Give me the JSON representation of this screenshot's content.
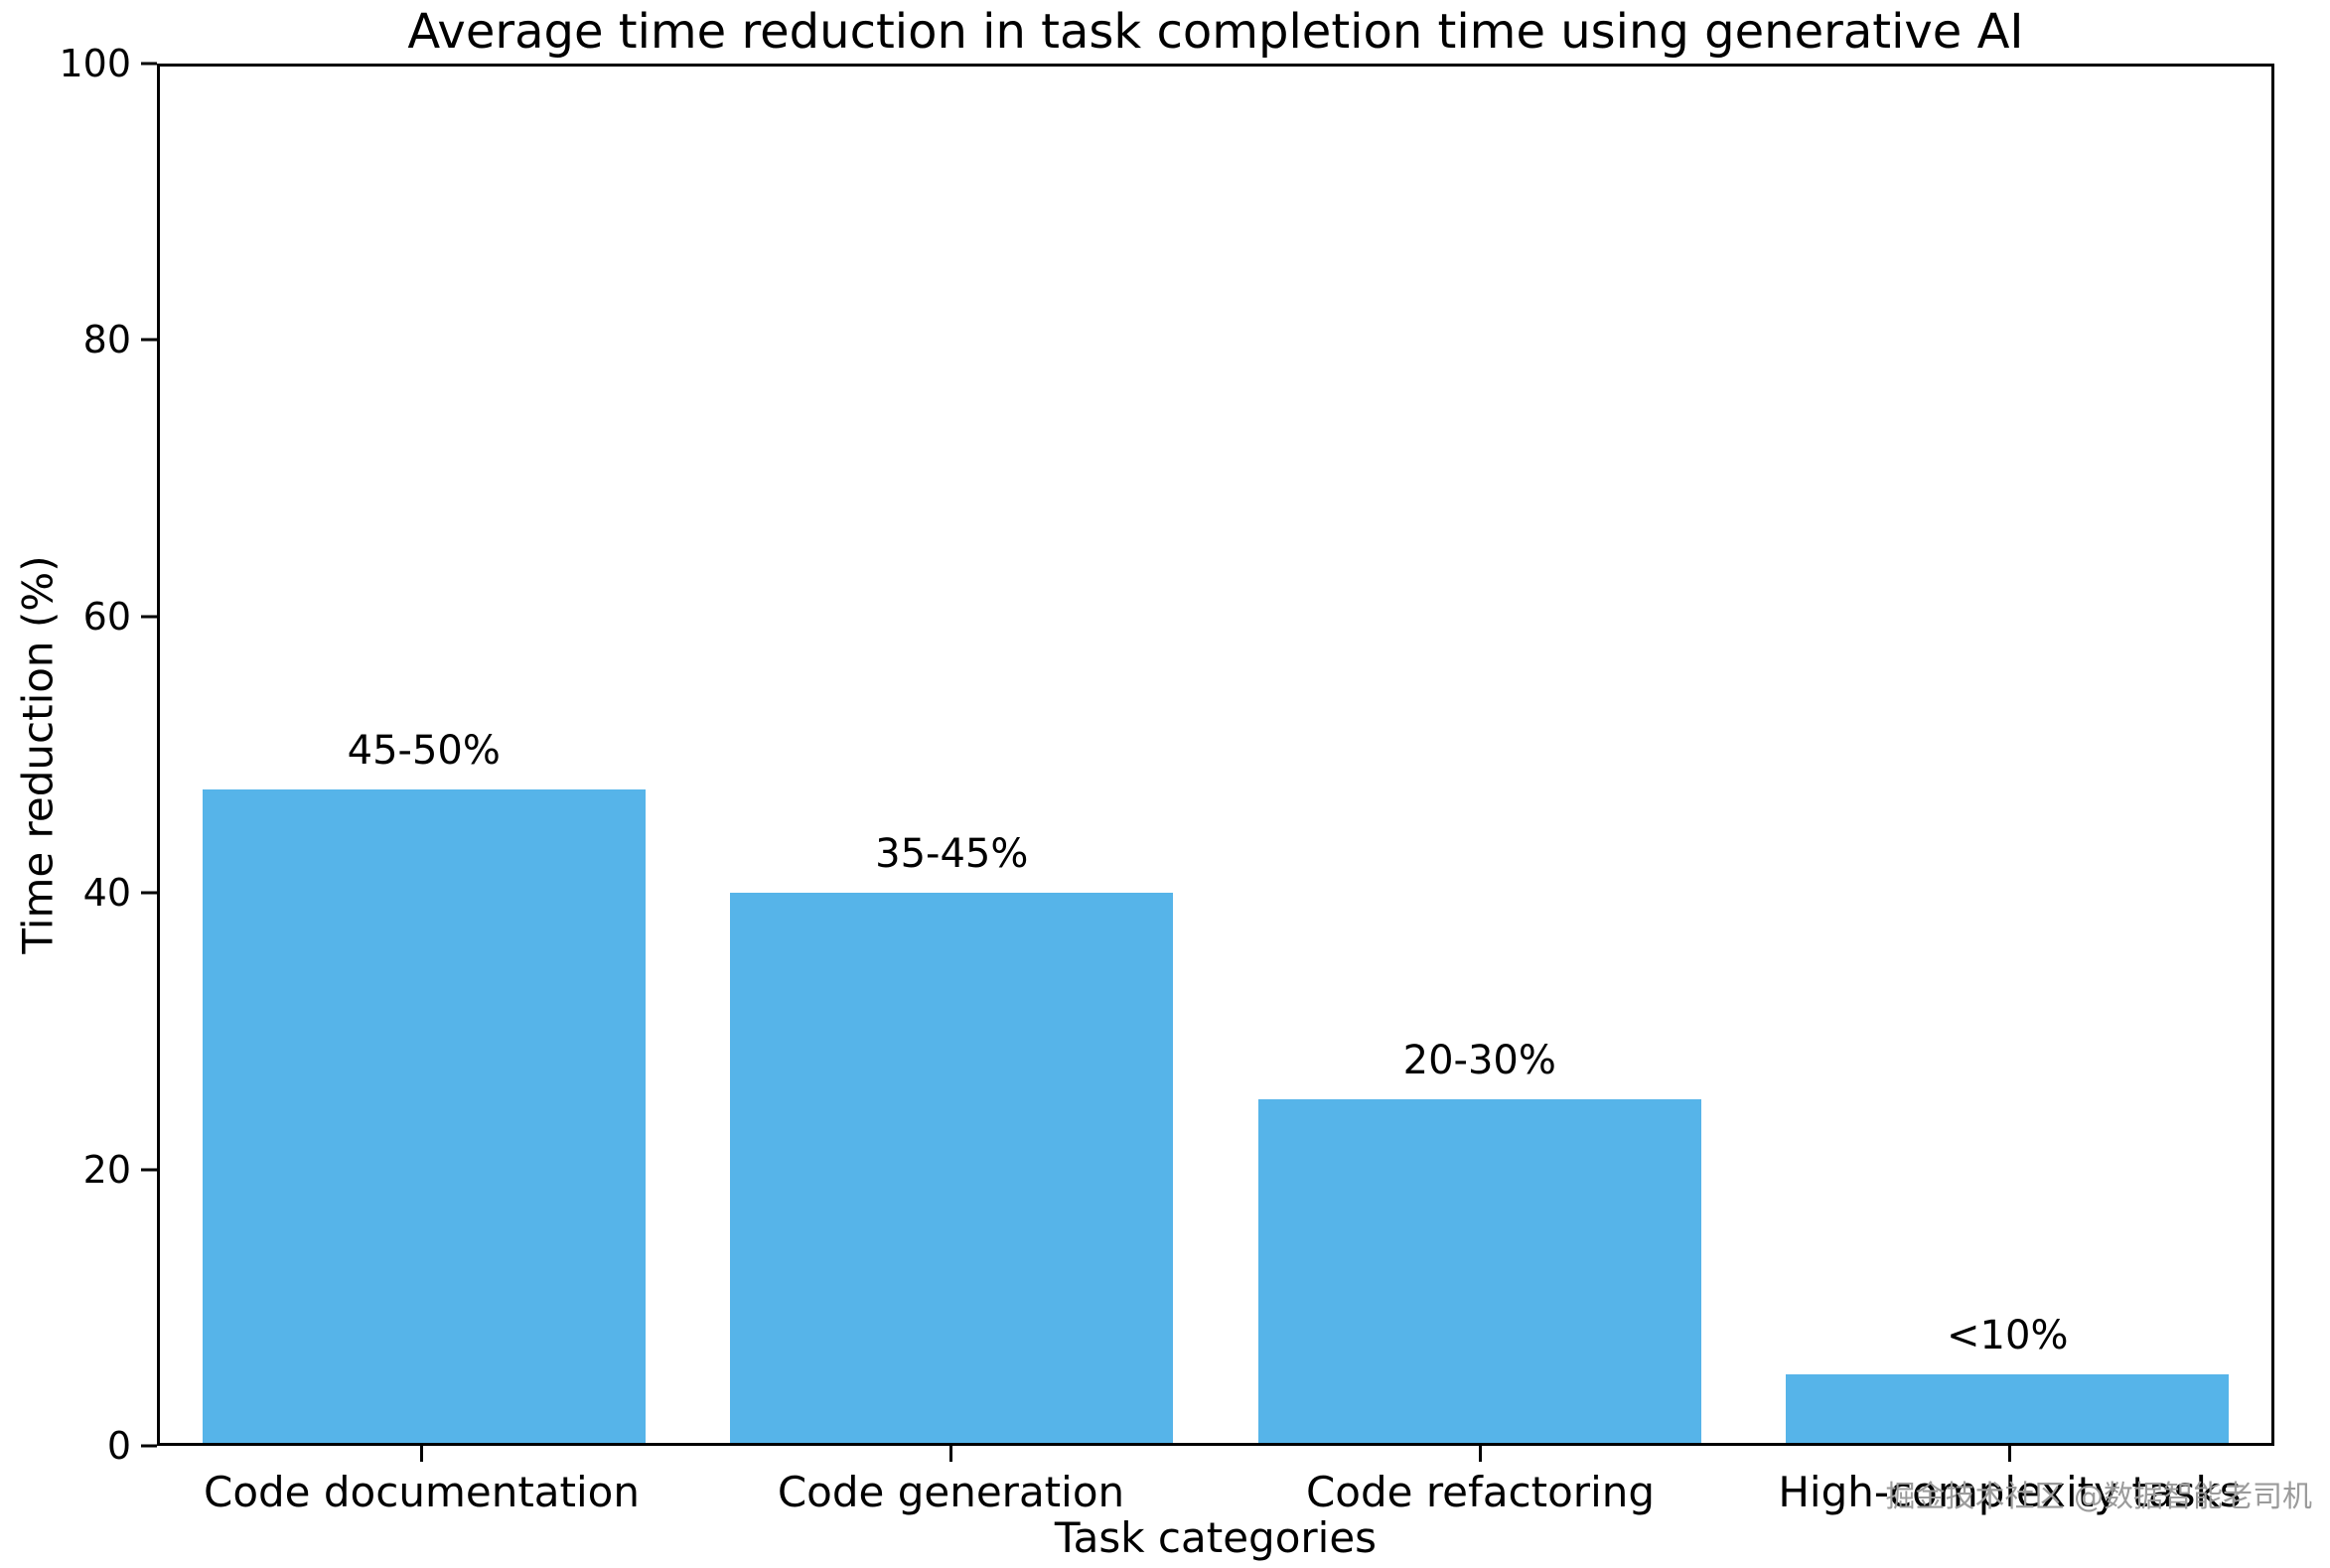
{
  "watermark": "掘金技术社区 @数据智能老司机",
  "chart_data": {
    "type": "bar",
    "title": "Average time reduction in task completion time using generative AI",
    "xlabel": "Task categories",
    "ylabel": "Time reduction (%)",
    "categories": [
      "Code documentation",
      "Code generation",
      "Code refactoring",
      "High-complexity tasks"
    ],
    "values": [
      47.5,
      40,
      25,
      5
    ],
    "bar_labels": [
      "45-50%",
      "35-45%",
      "20-30%",
      "<10%"
    ],
    "ylim": [
      0,
      100
    ],
    "yticks": [
      0,
      20,
      40,
      60,
      80,
      100
    ],
    "bar_color": "#56B4E9",
    "grid": false,
    "legend": "none"
  }
}
